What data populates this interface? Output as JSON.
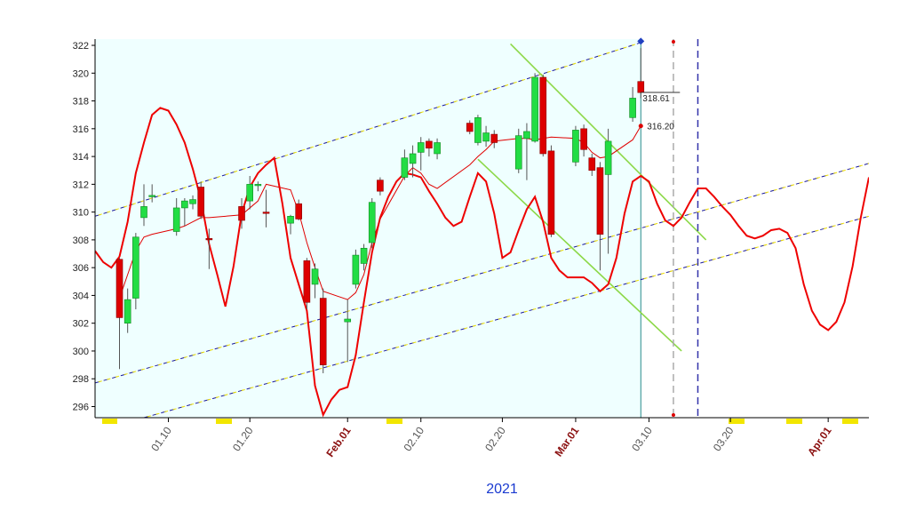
{
  "chart_data": {
    "type": "candlestick",
    "xlabel": "2021",
    "xlim": [
      "2021-01-01",
      "2021-04-06"
    ],
    "ylim": [
      295.2,
      322.45
    ],
    "yticks": [
      296,
      298,
      300,
      302,
      304,
      306,
      308,
      310,
      312,
      314,
      316,
      318,
      320,
      322
    ],
    "xticks": [
      {
        "value": "2021-01-10",
        "label": "01.10"
      },
      {
        "value": "2021-01-20",
        "label": "01.20"
      },
      {
        "value": "2021-02-01",
        "label": "Feb.01"
      },
      {
        "value": "2021-02-10",
        "label": "02.10"
      },
      {
        "value": "2021-02-20",
        "label": "02.20"
      },
      {
        "value": "2021-03-01",
        "label": "Mar.01"
      },
      {
        "value": "2021-03-10",
        "label": "03.10"
      },
      {
        "value": "2021-03-20",
        "label": "03.20"
      },
      {
        "value": "2021-04-01",
        "label": "Apr.01"
      }
    ],
    "up_color": "#22dd44",
    "down_color": "#dd0000",
    "x": [
      "2021-01-04",
      "2021-01-05",
      "2021-01-06",
      "2021-01-07",
      "2021-01-08",
      "2021-01-11",
      "2021-01-12",
      "2021-01-13",
      "2021-01-14",
      "2021-01-15",
      "2021-01-19",
      "2021-01-20",
      "2021-01-21",
      "2021-01-22",
      "2021-01-25",
      "2021-01-26",
      "2021-01-27",
      "2021-01-28",
      "2021-01-29",
      "2021-02-01",
      "2021-02-02",
      "2021-02-03",
      "2021-02-04",
      "2021-02-05",
      "2021-02-08",
      "2021-02-09",
      "2021-02-10",
      "2021-02-11",
      "2021-02-12",
      "2021-02-16",
      "2021-02-17",
      "2021-02-18",
      "2021-02-19",
      "2021-02-22",
      "2021-02-23",
      "2021-02-24",
      "2021-02-25",
      "2021-02-26",
      "2021-03-01",
      "2021-03-02",
      "2021-03-03",
      "2021-03-04",
      "2021-03-05",
      "2021-03-08",
      "2021-03-09"
    ],
    "open": [
      306.6,
      302.0,
      303.8,
      309.6,
      311.1,
      308.6,
      310.3,
      310.6,
      311.8,
      308.1,
      310.4,
      310.8,
      311.9,
      310.0,
      309.2,
      310.6,
      306.5,
      304.8,
      303.8,
      302.1,
      304.8,
      306.3,
      307.8,
      312.3,
      312.5,
      313.5,
      314.3,
      315.1,
      314.2,
      316.4,
      315.0,
      315.1,
      315.6,
      313.1,
      315.3,
      315.1,
      319.7,
      314.4,
      313.6,
      316.0,
      313.9,
      313.2,
      312.7,
      316.8,
      319.4
    ],
    "high": [
      306.7,
      304.5,
      308.5,
      312.0,
      312.0,
      311.0,
      311.0,
      311.2,
      312.2,
      308.8,
      311.0,
      312.6,
      312.2,
      311.6,
      309.8,
      310.9,
      306.7,
      306.3,
      304.5,
      303.7,
      307.3,
      307.7,
      311.0,
      312.5,
      314.5,
      314.8,
      315.4,
      315.3,
      315.3,
      316.6,
      317.0,
      316.2,
      315.9,
      316.0,
      316.4,
      320.0,
      319.9,
      314.8,
      316.2,
      316.3,
      314.2,
      313.6,
      316.0,
      319.0,
      321.8
    ],
    "low": [
      298.7,
      301.3,
      303.0,
      309.0,
      310.7,
      308.3,
      309.0,
      310.2,
      309.5,
      305.9,
      308.8,
      310.2,
      311.5,
      308.9,
      308.4,
      309.4,
      303.0,
      303.8,
      298.4,
      299.2,
      304.5,
      305.8,
      307.4,
      311.2,
      312.3,
      312.5,
      313.0,
      314.0,
      313.8,
      315.6,
      314.8,
      314.7,
      314.6,
      312.8,
      312.3,
      315.0,
      314.0,
      308.2,
      313.3,
      314.0,
      312.6,
      305.8,
      307.0,
      316.5,
      318.2
    ],
    "close": [
      302.4,
      303.7,
      308.2,
      310.4,
      311.2,
      310.3,
      310.8,
      310.9,
      309.7,
      308.0,
      309.4,
      312.0,
      312.0,
      309.9,
      309.7,
      309.5,
      303.5,
      305.9,
      299.0,
      302.3,
      306.9,
      307.4,
      310.7,
      311.5,
      313.9,
      314.2,
      315.0,
      314.6,
      315.0,
      315.8,
      316.8,
      315.7,
      315.0,
      315.5,
      315.8,
      319.7,
      314.2,
      308.4,
      315.9,
      314.5,
      313.0,
      308.4,
      315.1,
      318.2,
      318.6
    ],
    "ma": {
      "color": "#e00000",
      "values": [
        303.8,
        305.5,
        307.2,
        308.2,
        308.4,
        308.8,
        309.0,
        309.3,
        309.6,
        309.6,
        309.8,
        310.3,
        310.8,
        312.0,
        311.6,
        310.0,
        307.8,
        306.0,
        304.3,
        303.7,
        304.2,
        305.5,
        307.8,
        309.5,
        312.6,
        313.2,
        312.8,
        312.0,
        311.7,
        313.4,
        314.0,
        314.5,
        315.1,
        315.3,
        315.3,
        315.2,
        315.3,
        315.4,
        315.3,
        315.0,
        314.3,
        313.9,
        314.0,
        315.2,
        316.2
      ]
    },
    "overlay": {
      "color": "#ee0000",
      "x": [
        "2021-01-01",
        "2021-01-02",
        "2021-01-03",
        "2021-01-04",
        "2021-01-05",
        "2021-01-06",
        "2021-01-07",
        "2021-01-08",
        "2021-01-09",
        "2021-01-10",
        "2021-01-11",
        "2021-01-12",
        "2021-01-13",
        "2021-01-14",
        "2021-01-15",
        "2021-01-16",
        "2021-01-17",
        "2021-01-18",
        "2021-01-19",
        "2021-01-20",
        "2021-01-21",
        "2021-01-22",
        "2021-01-23",
        "2021-01-24",
        "2021-01-25",
        "2021-01-26",
        "2021-01-27",
        "2021-01-28",
        "2021-01-29",
        "2021-01-30",
        "2021-01-31",
        "2021-02-01",
        "2021-02-02",
        "2021-02-03",
        "2021-02-04",
        "2021-02-05",
        "2021-02-06",
        "2021-02-07",
        "2021-02-08",
        "2021-02-09",
        "2021-02-10",
        "2021-02-11",
        "2021-02-12",
        "2021-02-13",
        "2021-02-14",
        "2021-02-15",
        "2021-02-16",
        "2021-02-17",
        "2021-02-18",
        "2021-02-19",
        "2021-02-20",
        "2021-02-21",
        "2021-02-22",
        "2021-02-23",
        "2021-02-24",
        "2021-02-25",
        "2021-02-26",
        "2021-02-27",
        "2021-02-28",
        "2021-03-01",
        "2021-03-02",
        "2021-03-03",
        "2021-03-04",
        "2021-03-05",
        "2021-03-06",
        "2021-03-07",
        "2021-03-08",
        "2021-03-09",
        "2021-03-10",
        "2021-03-11",
        "2021-03-12",
        "2021-03-13",
        "2021-03-14",
        "2021-03-15",
        "2021-03-16",
        "2021-03-17",
        "2021-03-18",
        "2021-03-19",
        "2021-03-20",
        "2021-03-21",
        "2021-03-22",
        "2021-03-23",
        "2021-03-24",
        "2021-03-25",
        "2021-03-26",
        "2021-03-27",
        "2021-03-28",
        "2021-03-29",
        "2021-03-30",
        "2021-03-31",
        "2021-04-01",
        "2021-04-02",
        "2021-04-03",
        "2021-04-04",
        "2021-04-05",
        "2021-04-06"
      ],
      "values": [
        307.2,
        306.4,
        306.0,
        306.8,
        309.3,
        312.8,
        315.0,
        317.0,
        317.5,
        317.3,
        316.3,
        315.0,
        313.1,
        310.9,
        307.7,
        305.5,
        303.2,
        306.1,
        309.9,
        311.8,
        312.8,
        313.4,
        313.9,
        310.6,
        306.7,
        304.8,
        302.9,
        297.5,
        295.4,
        296.5,
        297.2,
        297.4,
        299.7,
        303.5,
        307.1,
        309.6,
        311.1,
        312.2,
        312.8,
        312.7,
        312.5,
        311.5,
        310.6,
        309.6,
        309.0,
        309.3,
        311.1,
        312.8,
        312.2,
        309.9,
        306.7,
        307.1,
        308.7,
        310.2,
        311.1,
        309.3,
        306.7,
        305.8,
        305.3,
        305.3,
        305.3,
        304.9,
        304.3,
        304.8,
        306.7,
        309.9,
        312.2,
        312.6,
        312.2,
        310.6,
        309.4,
        309.0,
        309.6,
        310.7,
        311.7,
        311.7,
        311.1,
        310.4,
        309.8,
        309.0,
        308.3,
        308.1,
        308.3,
        308.7,
        308.8,
        308.5,
        307.4,
        304.8,
        302.9,
        301.9,
        301.5,
        302.1,
        303.5,
        306.1,
        309.6,
        312.5
      ]
    },
    "lines": [
      {
        "style": "channel",
        "x": [
          "2021-01-01",
          "2021-03-09"
        ],
        "values": [
          309.7,
          322.2
        ]
      },
      {
        "style": "channel",
        "x": [
          "2021-01-01",
          "2021-04-06"
        ],
        "values": [
          297.7,
          313.5
        ]
      },
      {
        "style": "channel",
        "x": [
          "2021-01-07",
          "2021-04-06"
        ],
        "values": [
          295.2,
          309.7
        ]
      },
      {
        "style": "trend",
        "color": "#8cd848",
        "x": [
          "2021-02-21",
          "2021-03-17"
        ],
        "values": [
          322.1,
          308.0
        ]
      },
      {
        "style": "trend",
        "color": "#8cd848",
        "x": [
          "2021-02-17",
          "2021-03-14"
        ],
        "values": [
          313.8,
          300.0
        ]
      }
    ],
    "vlines": [
      {
        "x": "2021-03-13",
        "color": "#aaaaaa",
        "end_marker_color": "#dd0000"
      },
      {
        "x": "2021-03-16",
        "color": "#3333aa"
      }
    ],
    "annotations": [
      {
        "kind": "level",
        "x": "2021-03-09",
        "value": 318.61,
        "label": "318.61"
      },
      {
        "kind": "point",
        "x": "2021-03-09",
        "value": 316.2,
        "label": "316.20",
        "color": "#dd0000"
      }
    ],
    "last_marker": {
      "x": "2021-03-09",
      "value": 322.3,
      "color": "#2040c0"
    }
  }
}
